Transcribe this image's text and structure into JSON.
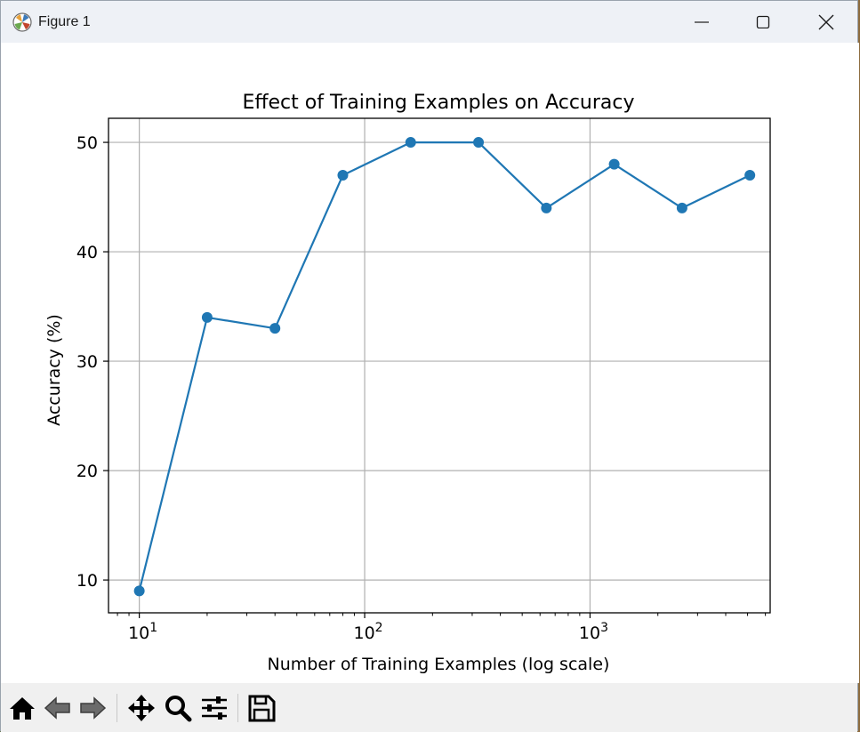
{
  "window": {
    "title": "Figure 1",
    "icons": [
      "matplotlib-logo-icon",
      "minimize-icon",
      "maximize-icon",
      "close-icon"
    ]
  },
  "toolbar": {
    "tools": [
      "home-icon",
      "back-arrow-icon",
      "forward-arrow-icon",
      "pan-icon",
      "zoom-icon",
      "configure-subplots-icon",
      "save-icon"
    ]
  },
  "chart_data": {
    "type": "line",
    "title": "Effect of Training Examples on Accuracy",
    "xlabel": "Number of Training Examples (log scale)",
    "ylabel": "Accuracy (%)",
    "xscale": "log",
    "xlim": [
      7.3,
      6300
    ],
    "ylim": [
      7,
      52.2
    ],
    "x": [
      10,
      20,
      40,
      80,
      160,
      320,
      640,
      1280,
      2560,
      5120
    ],
    "series": [
      {
        "values": [
          9,
          34,
          33,
          47,
          50,
          50,
          44,
          48,
          44,
          47
        ],
        "color": "#1f77b4",
        "marker": "circle"
      }
    ],
    "x_ticks": [
      {
        "value": 10,
        "base": "10",
        "exp": "1"
      },
      {
        "value": 100,
        "base": "10",
        "exp": "2"
      },
      {
        "value": 1000,
        "base": "10",
        "exp": "3"
      }
    ],
    "y_ticks": [
      10,
      20,
      30,
      40,
      50
    ],
    "grid": true,
    "legend": "none"
  }
}
